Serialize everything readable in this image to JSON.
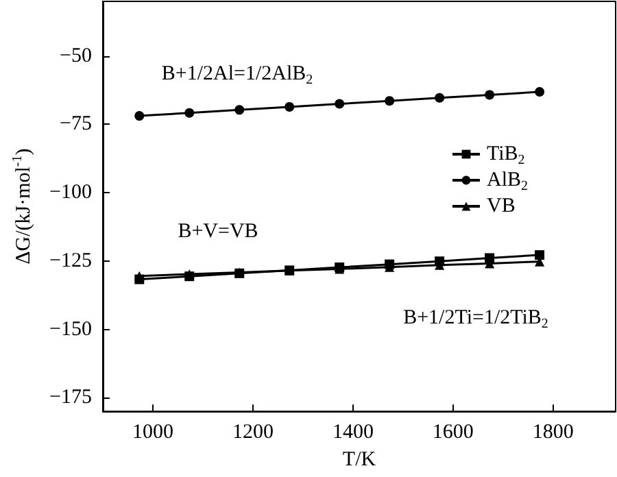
{
  "chart_data": {
    "type": "line",
    "xlabel": "T/K",
    "ylabel": "ΔG/(kJ·mol$^{-1}$)",
    "x": [
      973,
      1073,
      1173,
      1273,
      1373,
      1473,
      1573,
      1673,
      1773
    ],
    "series": [
      {
        "name": "TiB$_{2}$",
        "color": "#000000",
        "marker": "square",
        "values": [
          -131.7,
          -130.6,
          -129.5,
          -128.4,
          -127.3,
          -126.2,
          -125.1,
          -123.9,
          -122.8
        ]
      },
      {
        "name": "AlB$_{2}$",
        "color": "#000000",
        "marker": "circle",
        "values": [
          -71.9,
          -70.8,
          -69.7,
          -68.6,
          -67.5,
          -66.4,
          -65.3,
          -64.2,
          -63.1
        ]
      },
      {
        "name": "VB",
        "color": "#000000",
        "marker": "triangle",
        "values": [
          -130.5,
          -129.8,
          -129.2,
          -128.5,
          -127.9,
          -127.2,
          -126.5,
          -125.9,
          -125.2
        ]
      }
    ],
    "xlim": [
      900,
      1925
    ],
    "xticks": [
      1000,
      1200,
      1400,
      1600,
      1800
    ],
    "ylim": [
      -180,
      -30
    ],
    "yticks": [
      -50,
      -75,
      -100,
      -125,
      -150,
      -175
    ],
    "grid": false,
    "legend": "right",
    "line_style": "solid",
    "annotations": [
      "B+1/2Al=1/2AlB$_{2}$",
      "B+V=VB",
      "B+1/2Ti=1/2TiB$_{2}$"
    ]
  }
}
